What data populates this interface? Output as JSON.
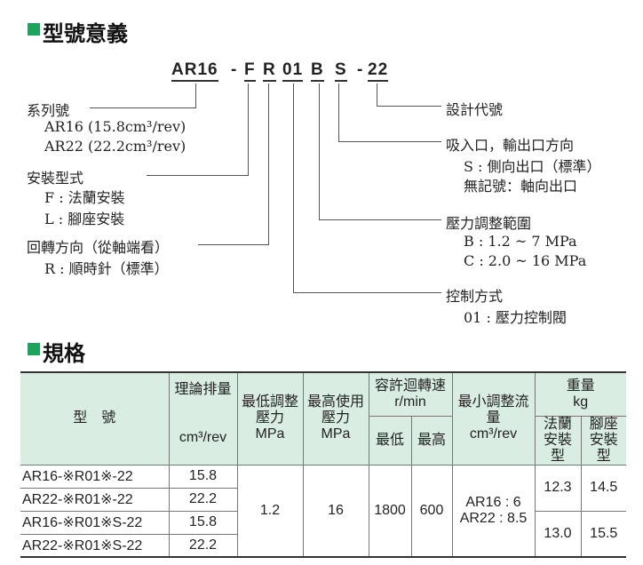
{
  "section1": {
    "title": "型號意義",
    "code": [
      "AR16",
      "-",
      "F",
      "R",
      "01",
      "B",
      "S",
      "-",
      "22"
    ]
  },
  "left": {
    "series": "系列號",
    "series_items": [
      "AR16 (15.8cm³/rev)",
      "AR22 (22.2cm³/rev)"
    ],
    "mount": "安裝型式",
    "mount_items": [
      "F : 法蘭安裝",
      "L : 腳座安裝"
    ],
    "rotation": "回轉方向（從軸端看）",
    "rotation_items": [
      "R : 順時針（標準）"
    ]
  },
  "right": {
    "design": "設計代號",
    "port": "吸入口，輸出口方向",
    "port_items": [
      "S : 側向出口（標準）",
      "無記號：軸向出口"
    ],
    "pressure": "壓力調整範圍",
    "pressure_items": [
      "B : 1.2 ~ 7 MPa",
      "C : 2.0 ~ 16 MPa"
    ],
    "control": "控制方式",
    "control_items": [
      "01 : 壓力控制閥"
    ]
  },
  "section2": {
    "title": "規格"
  },
  "table": {
    "headers": {
      "model": "型　號",
      "disp": "理論排量",
      "disp_unit": "cm³/rev",
      "minp": "最低調整壓力",
      "minp_unit": "MPa",
      "maxp": "最高使用壓力",
      "maxp_unit": "MPa",
      "speed": "容許迴轉速",
      "speed_unit": "r/min",
      "speed_min": "最低",
      "speed_max": "最高",
      "flow": "最小調整流量",
      "flow_unit": "cm³/rev",
      "weight": "重量",
      "weight_unit": "kg",
      "w_flange": "法蘭安裝型",
      "w_foot": "腳座安裝型"
    },
    "rows": [
      {
        "model": "AR16-※R01※-22",
        "disp": "15.8"
      },
      {
        "model": "AR22-※R01※-22",
        "disp": "22.2"
      },
      {
        "model": "AR16-※R01※S-22",
        "disp": "15.8"
      },
      {
        "model": "AR22-※R01※S-22",
        "disp": "22.2"
      }
    ],
    "minp": "1.2",
    "maxp": "16",
    "speed_min": "1800",
    "speed_max": "600",
    "flow": [
      "AR16 : 6",
      "AR22 : 8.5"
    ],
    "weights": [
      {
        "flange": "12.3",
        "foot": "14.5"
      },
      {
        "flange": "13.0",
        "foot": "15.5"
      }
    ]
  }
}
